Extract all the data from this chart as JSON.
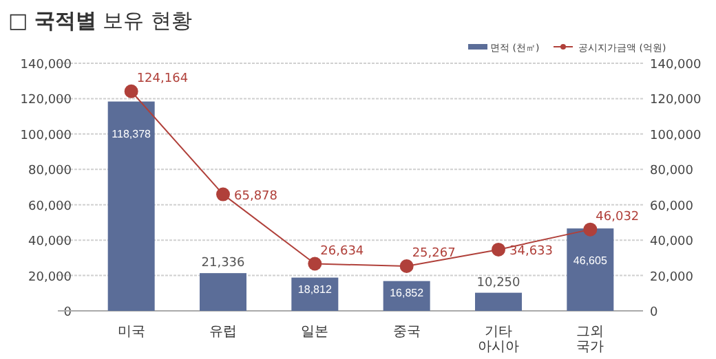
{
  "chart_data": {
    "type": "bar",
    "title": "□ **국적별** 보유 현황",
    "categories": [
      "미국",
      "유럽",
      "일본",
      "중국",
      "기타 아시아",
      "그외 국가"
    ],
    "series": [
      {
        "name": "면적 (천㎡)",
        "color": "#5b6d98",
        "values": [
          118378,
          21336,
          18812,
          16852,
          10250,
          46605
        ],
        "value_labels": [
          "118,378",
          "21,336",
          "18,812",
          "16,852",
          "10,250",
          "46,605"
        ]
      },
      {
        "name": "공시지가금액 (억원)",
        "type": "line",
        "axis": "y2",
        "color": "#b0403a",
        "marker": "circle",
        "values": [
          124164,
          65878,
          26634,
          25267,
          34633,
          46032
        ],
        "value_labels": [
          "124,164",
          "65,878",
          "26,634",
          "25,267",
          "34,633",
          "46,032"
        ]
      }
    ],
    "ylim": [
      0,
      140000
    ],
    "yticks": [
      0,
      {
        "value": 20000,
        "label": "20,000"
      },
      {
        "value": 40000,
        "label": "40,000"
      },
      {
        "value": 60000,
        "label": "60,000"
      },
      {
        "value": 80000,
        "label": "80,000"
      },
      {
        "value": 100000,
        "label": "100,000"
      },
      {
        "value": 120000,
        "label": "120,000"
      },
      {
        "value": 140000,
        "label": "140,000"
      }
    ],
    "y2lim": [
      0,
      140000
    ],
    "y2ticks": [
      0,
      {
        "value": 20000,
        "label": "20,000"
      },
      {
        "value": 40000,
        "label": "40,000"
      },
      {
        "value": 60000,
        "label": "60,000"
      },
      {
        "value": 80000,
        "label": "80,000"
      },
      {
        "value": 100000,
        "label": "100,000"
      },
      {
        "value": 120000,
        "label": "120,000"
      },
      {
        "value": 140000,
        "label": "140,000"
      }
    ],
    "grid": "y",
    "legend": "top right"
  }
}
